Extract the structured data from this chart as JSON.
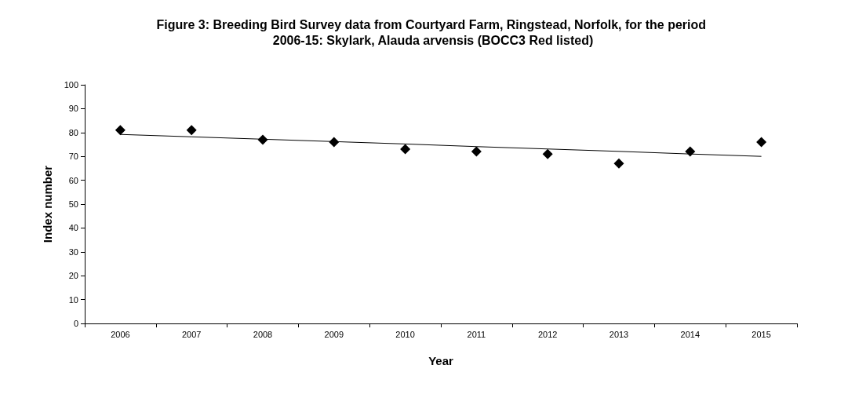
{
  "chart_data": {
    "type": "scatter",
    "title": "Figure 3: Breeding Bird Survey data from Courtyard Farm, Ringstead, Norfolk, for the period 2006-15: Skylark, Alauda arvensis (BOCC3 Red listed)",
    "xlabel": "Year",
    "ylabel": "Index number",
    "categories": [
      "2006",
      "2007",
      "2008",
      "2009",
      "2010",
      "2011",
      "2012",
      "2013",
      "2014",
      "2015"
    ],
    "series": [
      {
        "color": "#000000",
        "marker": "diamond",
        "values": [
          81,
          81,
          77,
          76,
          73,
          72,
          71,
          67,
          72,
          76
        ]
      },
      {
        "type": "line",
        "color": "#000000",
        "marker": "none",
        "line_style": "solid",
        "values": [
          79.2,
          78.2,
          77.2,
          76.2,
          75.2,
          74.1,
          73.1,
          72.1,
          71.0,
          70.0
        ]
      }
    ],
    "ylim": [
      0,
      100
    ],
    "yticks": [
      0,
      10,
      20,
      30,
      40,
      50,
      60,
      70,
      80,
      90,
      100
    ],
    "grid": false
  }
}
